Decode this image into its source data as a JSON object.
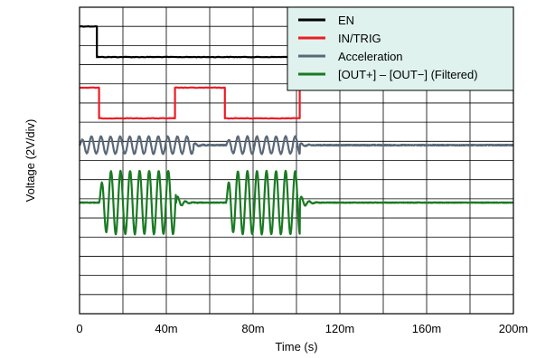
{
  "chart_data": {
    "type": "line",
    "xlabel": "Time (s)",
    "ylabel": "Voltage (2V/div)",
    "x_unit": "s",
    "xlim": [
      0,
      0.2
    ],
    "x_ticks": [
      "0",
      "40m",
      "80m",
      "120m",
      "160m",
      "200m"
    ],
    "divisions": {
      "x": 10,
      "y": 16
    },
    "grid": true,
    "legend_position": "top-right",
    "legend_background": "#dff2ee",
    "series": [
      {
        "name": "EN",
        "color": "#000000",
        "kind": "digital",
        "low_div": 1.0,
        "high_div": 2.6,
        "transitions_s": [
          0.008,
          0.1015
        ],
        "initial": "low"
      },
      {
        "name": "IN/TRIG",
        "color": "#ee1c24",
        "kind": "digital",
        "low_div": 4.2,
        "high_div": 5.8,
        "transitions_s": [
          0.009,
          0.044,
          0.067,
          0.1015
        ],
        "initial": "low"
      },
      {
        "name": "Acceleration",
        "color": "#5a6878",
        "kind": "oscillation",
        "baseline_div": 7.2,
        "bursts": [
          {
            "start_s": 0.0,
            "end_s": 0.0525,
            "period_s": 0.0044,
            "peak_div": 0.45
          },
          {
            "start_s": 0.0675,
            "end_s": 0.1015,
            "period_s": 0.0044,
            "peak_div": 0.45
          }
        ],
        "noise_div": 0.05
      },
      {
        "name": "[OUT+] – [OUT−] (Filtered)",
        "color": "#1a7a23",
        "kind": "oscillation",
        "baseline_div": 10.2,
        "bursts": [
          {
            "start_s": 0.009,
            "end_s": 0.0445,
            "period_s": 0.0044,
            "peak_div": 1.65
          },
          {
            "start_s": 0.0675,
            "end_s": 0.1015,
            "period_s": 0.0044,
            "peak_div": 1.65
          }
        ],
        "noise_div": 0.03
      }
    ]
  }
}
